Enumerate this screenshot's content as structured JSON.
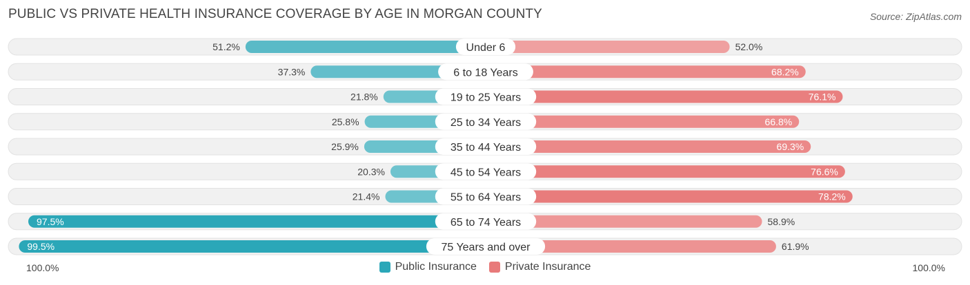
{
  "header": {
    "title": "PUBLIC VS PRIVATE HEALTH INSURANCE COVERAGE BY AGE IN MORGAN COUNTY",
    "source": "Source: ZipAtlas.com"
  },
  "axis": {
    "left_label": "100.0%",
    "right_label": "100.0%"
  },
  "legend": {
    "public_label": "Public Insurance",
    "private_label": "Private Insurance"
  },
  "colors": {
    "public": "#7dc9d3",
    "public_strong": "#2ba7b8",
    "private": "#f0a3a3",
    "private_strong": "#e87a7a",
    "track": "#f1f1f1"
  },
  "chart_data": {
    "type": "bar",
    "orientation": "horizontal-diverging",
    "title": "PUBLIC VS PRIVATE HEALTH INSURANCE COVERAGE BY AGE IN MORGAN COUNTY",
    "xlim": [
      -100,
      100
    ],
    "categories": [
      "Under 6",
      "6 to 18 Years",
      "19 to 25 Years",
      "25 to 34 Years",
      "35 to 44 Years",
      "45 to 54 Years",
      "55 to 64 Years",
      "65 to 74 Years",
      "75 Years and over"
    ],
    "series": [
      {
        "name": "Public Insurance",
        "values": [
          51.2,
          37.3,
          21.8,
          25.8,
          25.9,
          20.3,
          21.4,
          97.5,
          99.5
        ],
        "labels": [
          "51.2%",
          "37.3%",
          "21.8%",
          "25.8%",
          "25.9%",
          "20.3%",
          "21.4%",
          "97.5%",
          "99.5%"
        ]
      },
      {
        "name": "Private Insurance",
        "values": [
          52.0,
          68.2,
          76.1,
          66.8,
          69.3,
          76.6,
          78.2,
          58.9,
          61.9
        ],
        "labels": [
          "52.0%",
          "68.2%",
          "76.1%",
          "66.8%",
          "69.3%",
          "76.6%",
          "78.2%",
          "58.9%",
          "61.9%"
        ]
      }
    ]
  }
}
